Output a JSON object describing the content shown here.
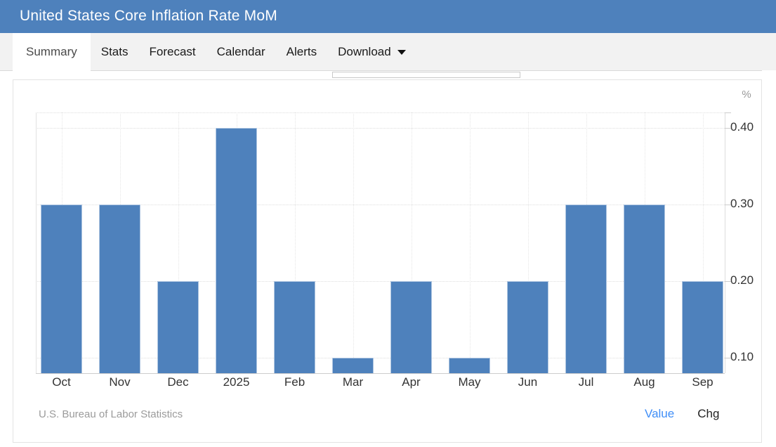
{
  "header": {
    "title": "United States Core Inflation Rate MoM"
  },
  "tabs": {
    "items": [
      {
        "label": "Summary",
        "active": true,
        "has_caret": false
      },
      {
        "label": "Stats",
        "active": false,
        "has_caret": false
      },
      {
        "label": "Forecast",
        "active": false,
        "has_caret": false
      },
      {
        "label": "Calendar",
        "active": false,
        "has_caret": false
      },
      {
        "label": "Alerts",
        "active": false,
        "has_caret": false
      },
      {
        "label": "Download",
        "active": false,
        "has_caret": true
      }
    ]
  },
  "chart_data": {
    "type": "bar",
    "title": "United States Core Inflation Rate MoM",
    "categories": [
      "Oct",
      "Nov",
      "Dec",
      "2025",
      "Feb",
      "Mar",
      "Apr",
      "May",
      "Jun",
      "Jul",
      "Aug",
      "Sep"
    ],
    "values": [
      0.3,
      0.3,
      0.2,
      0.4,
      0.2,
      0.1,
      0.2,
      0.1,
      0.2,
      0.3,
      0.3,
      0.2
    ],
    "unit_label": "%",
    "ylabel": "%",
    "xlabel": "",
    "yticks": [
      0.1,
      0.2,
      0.3,
      0.4
    ],
    "ytick_labels": [
      "0.10",
      "0.20",
      "0.30",
      "0.40"
    ],
    "ylim": [
      0.08,
      0.42
    ],
    "grid": true,
    "bar_color": "#4e81bc",
    "source": "U.S. Bureau of Labor Statistics",
    "legend_position": "bottom-right",
    "legend": [
      {
        "label": "Value",
        "active": true
      },
      {
        "label": "Chg",
        "active": false
      }
    ]
  }
}
